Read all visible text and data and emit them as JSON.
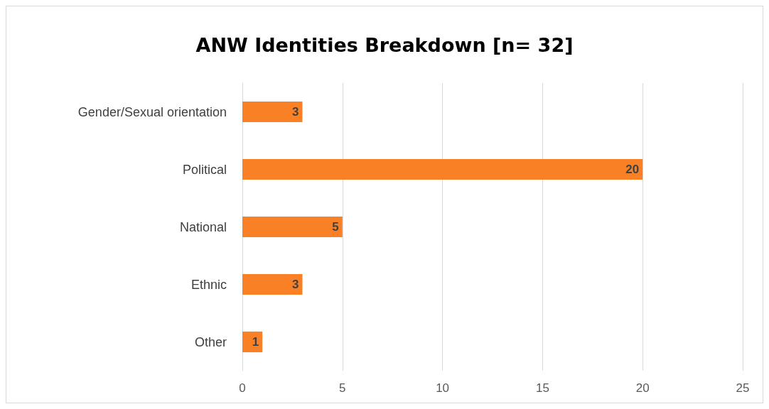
{
  "chart_data": {
    "type": "bar",
    "orientation": "horizontal",
    "title": "ANW Identities Breakdown [n= 32]",
    "categories": [
      "Gender/Sexual orientation",
      "Political",
      "National",
      "Ethnic",
      "Other"
    ],
    "values": [
      3,
      20,
      5,
      3,
      1
    ],
    "color": "#f98025",
    "xlim": [
      0,
      25
    ],
    "xticks": [
      0,
      5,
      10,
      15,
      20,
      25
    ],
    "grid": "x",
    "data_labels": true
  }
}
